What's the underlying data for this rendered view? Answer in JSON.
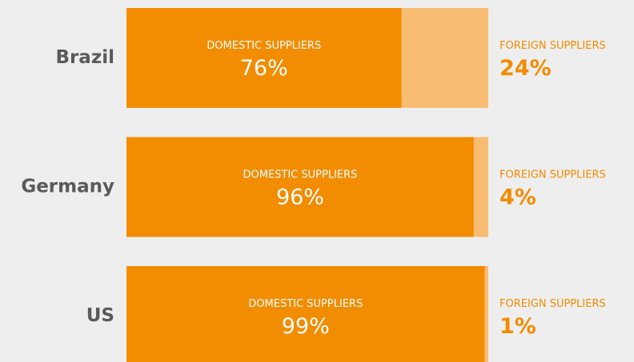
{
  "chart_data": {
    "type": "stacked-bar-horizontal",
    "categories": [
      "Brazil",
      "Germany",
      "US"
    ],
    "xlim": [
      0,
      100
    ],
    "series": [
      {
        "name": "DOMESTIC SUPPLIERS",
        "color": "#f28c00",
        "values": [
          76,
          96,
          99
        ],
        "value_labels": [
          "76%",
          "96%",
          "99%"
        ]
      },
      {
        "name": "FOREIGN SUPPLIERS",
        "color": "#f9bc73",
        "values": [
          24,
          4,
          1
        ],
        "value_labels": [
          "24%",
          "4%",
          "1%"
        ]
      }
    ]
  }
}
